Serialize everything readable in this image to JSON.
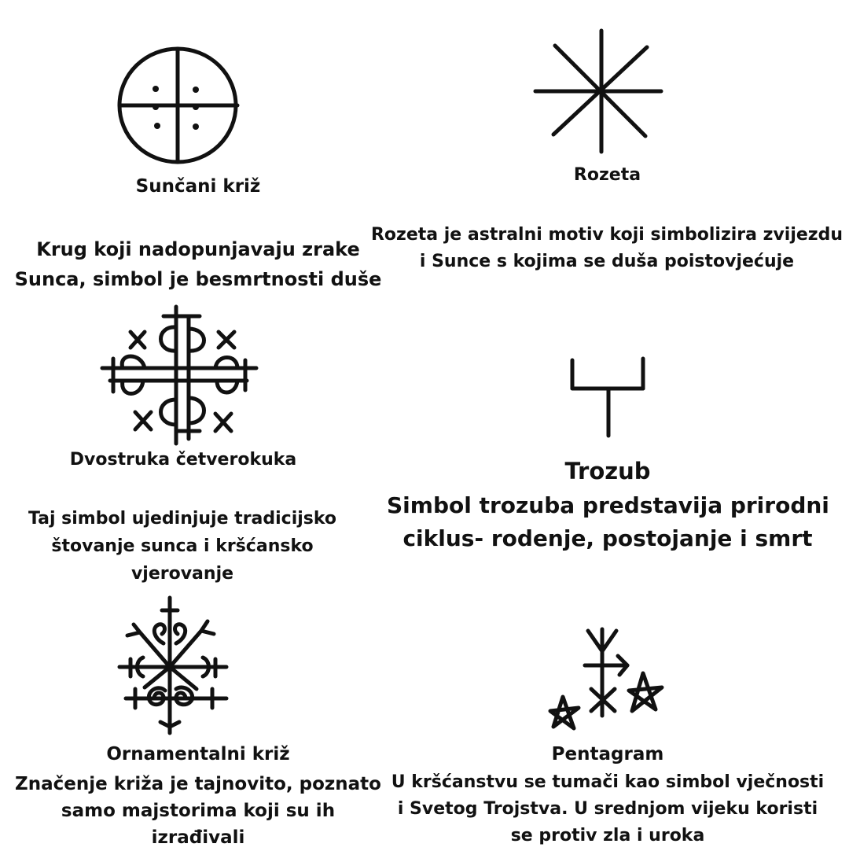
{
  "symbols": [
    {
      "icon": "sun-cross-icon",
      "title": "Sunčani križ",
      "description": [
        "Krug koji nadopunjavaju zrake",
        "Sunca, simbol je besmrtnosti duše"
      ]
    },
    {
      "icon": "rosette-icon",
      "title": "Rozeta",
      "description": [
        "Rozeta je astralni motiv koji simbolizira zvijezdu",
        "i Sunce s kojima se duša poistovjećuje"
      ]
    },
    {
      "icon": "double-fourfold-hook-icon",
      "title": "Dvostruka četverokuka",
      "description": [
        "Taj simbol ujedinjuje tradicijsko",
        "štovanje sunca i kršćansko",
        "vjerovanje"
      ]
    },
    {
      "icon": "trident-icon",
      "title": "Trozub",
      "description": [
        "Simbol trozuba predstavija prirodni",
        "ciklus- rodenje, postojanje i smrt"
      ]
    },
    {
      "icon": "ornamental-cross-icon",
      "title": "Ornamentalni križ",
      "description": [
        "Značenje križa je tajnovito, poznato",
        "samo majstorima koji su ih",
        "izrađivali"
      ]
    },
    {
      "icon": "pentagram-icon",
      "title": "Pentagram",
      "description": [
        "U kršćanstvu se tumači kao simbol vječnosti",
        "i Svetog Trojstva. U srednjom vijeku koristi",
        "se protiv zla i uroka"
      ]
    }
  ]
}
